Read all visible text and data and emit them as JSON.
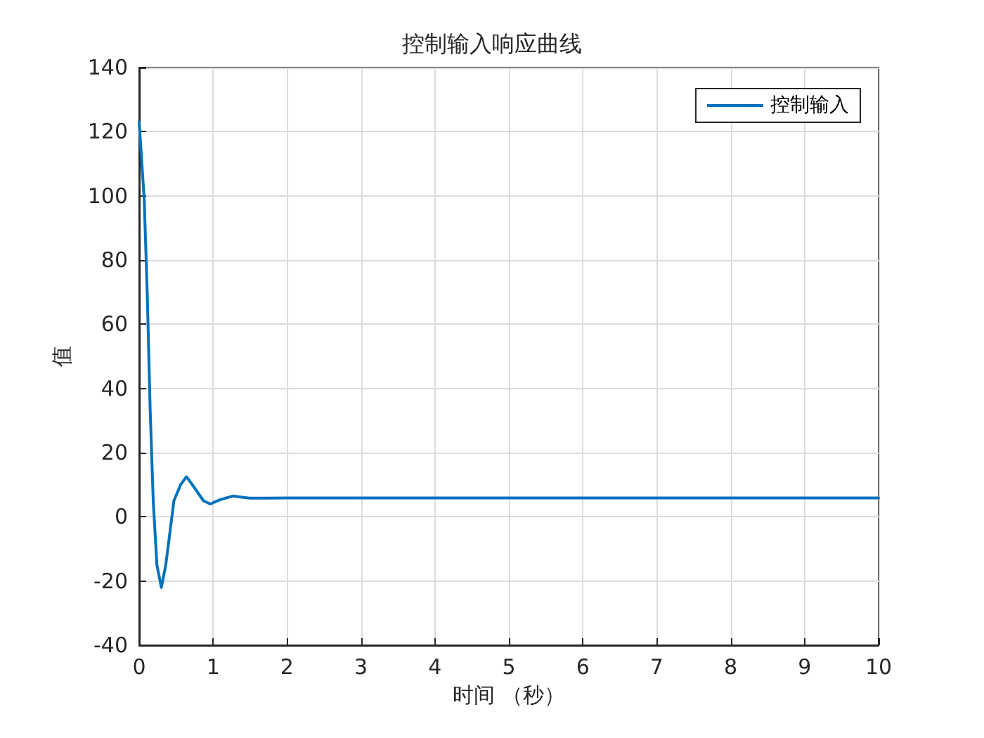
{
  "chart_data": {
    "type": "line",
    "title": "控制输入响应曲线",
    "xlabel": "时间 （秒）",
    "ylabel": "值",
    "x": [
      0,
      0.068,
      0.11,
      0.148,
      0.19,
      0.24,
      0.3,
      0.36,
      0.47,
      0.56,
      0.64,
      0.75,
      0.87,
      0.96,
      1.09,
      1.27,
      1.49,
      1.73,
      2,
      3,
      4,
      5,
      6,
      7,
      8,
      9,
      10
    ],
    "series": [
      {
        "name": "控制输入",
        "color": "#0072bd",
        "values": [
          123,
          99,
          69,
          34,
          5,
          -15,
          -22,
          -15,
          5,
          10,
          12.5,
          9,
          5,
          4,
          5.3,
          6.5,
          5.8,
          5.8,
          5.9,
          5.9,
          5.9,
          5.9,
          5.9,
          5.9,
          5.9,
          5.9,
          5.9
        ]
      }
    ],
    "xlim": [
      0,
      10
    ],
    "xticks": [
      0,
      1,
      2,
      3,
      4,
      5,
      6,
      7,
      8,
      9,
      10
    ],
    "ylim": [
      -40,
      140
    ],
    "yticks": [
      -40,
      -20,
      0,
      20,
      40,
      60,
      80,
      100,
      120,
      140
    ],
    "grid": true,
    "legend": "top right",
    "marker": "none",
    "line_style": "solid"
  }
}
